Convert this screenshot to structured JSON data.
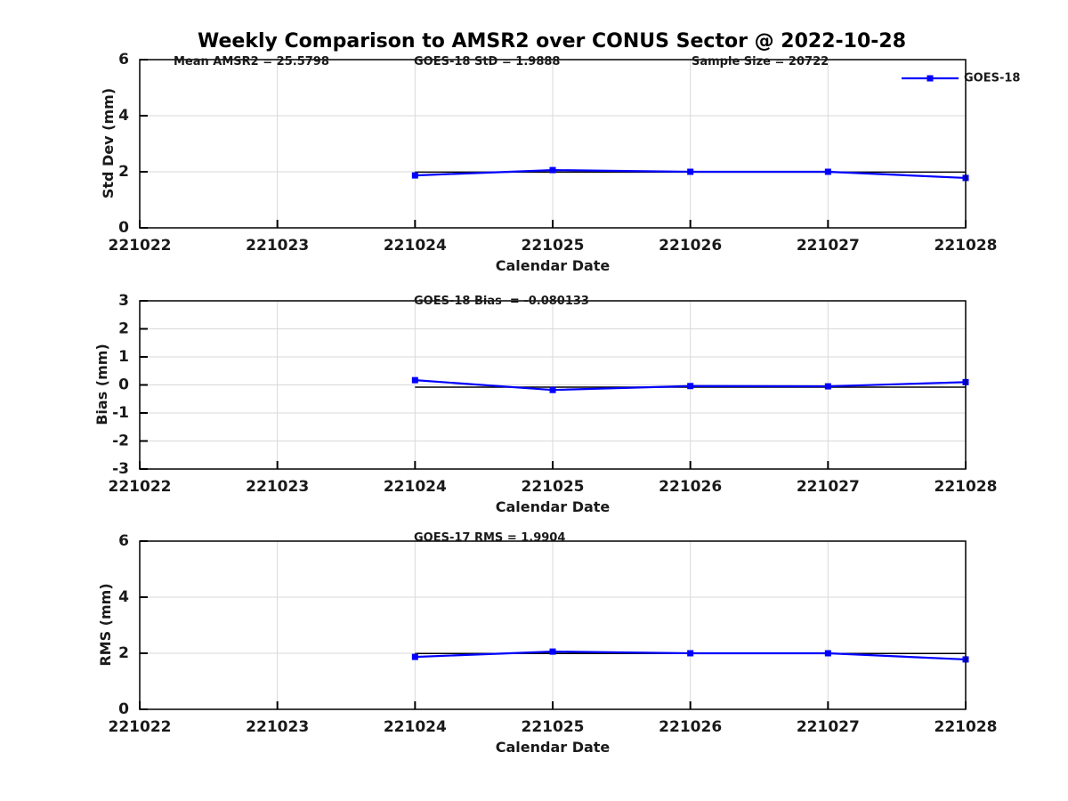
{
  "title": "Weekly Comparison to AMSR2 over CONUS Sector @ 2022-10-28",
  "chart_data": [
    {
      "type": "line",
      "ylabel": "Std Dev (mm)",
      "xlabel": "Calendar Date",
      "ylim": [
        0,
        6
      ],
      "yticks": [
        0,
        2,
        4,
        6
      ],
      "x_categories": [
        "221022",
        "221023",
        "221024",
        "221025",
        "221026",
        "221027",
        "221028"
      ],
      "grid": true,
      "annotations": [
        {
          "text": "Mean AMSR2 = 25.5798"
        },
        {
          "text": "GOES-18 StD = 1.9888"
        },
        {
          "text": "Sample Size = 20722"
        }
      ],
      "series": [
        {
          "name": "GOES-18",
          "color": "#0000ff",
          "marker": "square",
          "x": [
            "221024",
            "221025",
            "221026",
            "221027",
            "221028"
          ],
          "values": [
            1.87,
            2.06,
            2.0,
            2.0,
            1.78
          ]
        }
      ],
      "reference_line": {
        "value": 1.9888,
        "color": "#000000",
        "x_start": "221024",
        "x_end": "221028"
      },
      "legend": {
        "visible": true,
        "position": "top-right",
        "entries": [
          {
            "label": "GOES-18",
            "color": "#0000ff"
          }
        ]
      }
    },
    {
      "type": "line",
      "ylabel": "Bias (mm)",
      "xlabel": "Calendar Date",
      "ylim": [
        -3,
        3
      ],
      "yticks": [
        -3,
        -2,
        -1,
        0,
        1,
        2,
        3
      ],
      "x_categories": [
        "221022",
        "221023",
        "221024",
        "221025",
        "221026",
        "221027",
        "221028"
      ],
      "grid": true,
      "annotations": [
        {
          "text": "GOES-18 Bias  = -0.080133"
        }
      ],
      "series": [
        {
          "name": "GOES-18",
          "color": "#0000ff",
          "marker": "square",
          "x": [
            "221024",
            "221025",
            "221026",
            "221027",
            "221028"
          ],
          "values": [
            0.17,
            -0.18,
            -0.04,
            -0.05,
            0.1
          ]
        }
      ],
      "reference_line": {
        "value": -0.080133,
        "color": "#000000",
        "x_start": "221024",
        "x_end": "221028"
      },
      "legend": {
        "visible": false,
        "position": "top-right",
        "entries": []
      }
    },
    {
      "type": "line",
      "ylabel": "RMS (mm)",
      "xlabel": "Calendar Date",
      "ylim": [
        0,
        6
      ],
      "yticks": [
        0,
        2,
        4,
        6
      ],
      "x_categories": [
        "221022",
        "221023",
        "221024",
        "221025",
        "221026",
        "221027",
        "221028"
      ],
      "grid": true,
      "annotations": [
        {
          "text": "GOES-17 RMS = 1.9904"
        }
      ],
      "series": [
        {
          "name": "GOES-18",
          "color": "#0000ff",
          "marker": "square",
          "x": [
            "221024",
            "221025",
            "221026",
            "221027",
            "221028"
          ],
          "values": [
            1.87,
            2.06,
            2.0,
            2.0,
            1.78
          ]
        }
      ],
      "reference_line": {
        "value": 1.9904,
        "color": "#000000",
        "x_start": "221024",
        "x_end": "221028"
      },
      "legend": {
        "visible": false,
        "position": "top-right",
        "entries": []
      }
    }
  ],
  "colors": {
    "series": "#0000ff",
    "grid": "#d9d9d9",
    "spine": "#000000",
    "text": "#1a1a1a"
  }
}
